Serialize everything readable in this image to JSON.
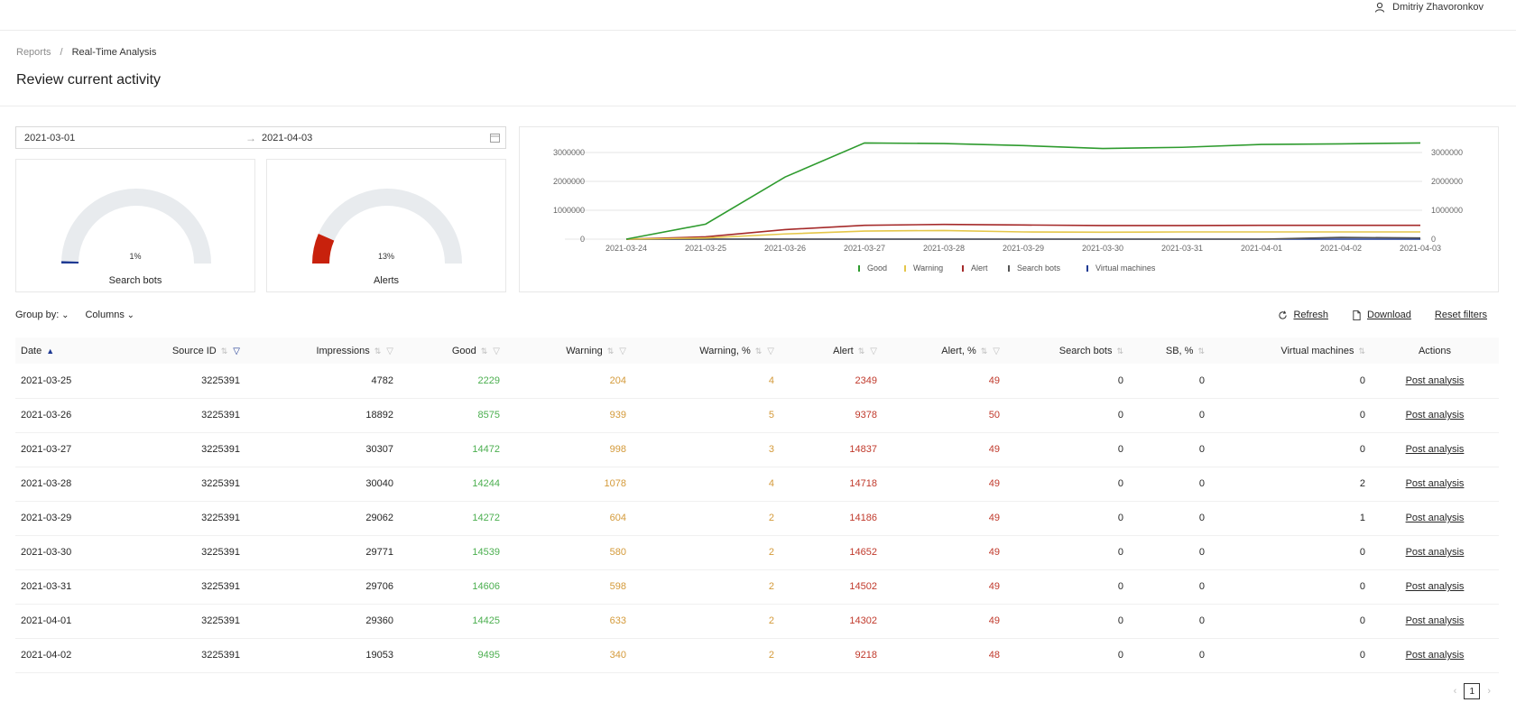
{
  "user": {
    "name": "Dmitriy Zhavoronkov",
    "icon": "user-icon"
  },
  "breadcrumb": {
    "root": "Reports",
    "separator": "/",
    "current": "Real-Time Analysis"
  },
  "page_title": "Review current activity",
  "daterange": {
    "from": "2021-03-01",
    "to": "2021-04-03"
  },
  "gauges": [
    {
      "label": "Search bots",
      "percent_text": "1%",
      "value": 1,
      "color": "#1f3a93"
    },
    {
      "label": "Alerts",
      "percent_text": "13%",
      "value": 13,
      "color": "#c8210c"
    }
  ],
  "chart_data": {
    "type": "line",
    "x": [
      "2021-03-24",
      "2021-03-25",
      "2021-03-26",
      "2021-03-27",
      "2021-03-28",
      "2021-03-29",
      "2021-03-30",
      "2021-03-31",
      "2021-04-01",
      "2021-04-02",
      "2021-04-03"
    ],
    "yticks": [
      "0",
      "1000000",
      "2000000",
      "3000000"
    ],
    "ylim": [
      0,
      3500000
    ],
    "grid": true,
    "legend_position": "bottom",
    "dual_axis": true,
    "series": [
      {
        "name": "Good",
        "color": "#2e9b2e",
        "values": [
          0,
          520000,
          2150000,
          3330000,
          3310000,
          3240000,
          3140000,
          3180000,
          3280000,
          3300000,
          3330000
        ]
      },
      {
        "name": "Warning",
        "color": "#e4c64a",
        "values": [
          0,
          40000,
          180000,
          280000,
          300000,
          250000,
          240000,
          250000,
          250000,
          250000,
          250000
        ]
      },
      {
        "name": "Alert",
        "color": "#a52a2a",
        "values": [
          0,
          80000,
          330000,
          480000,
          510000,
          490000,
          470000,
          470000,
          480000,
          480000,
          480000
        ]
      },
      {
        "name": "Search bots",
        "color": "#555555",
        "values": [
          0,
          0,
          0,
          0,
          0,
          0,
          0,
          0,
          0,
          60000,
          40000
        ]
      },
      {
        "name": "Virtual machines",
        "color": "#1f3a93",
        "values": [
          0,
          0,
          0,
          0,
          0,
          0,
          0,
          0,
          0,
          0,
          0
        ]
      }
    ]
  },
  "toolbar": {
    "group_by": "Group by:",
    "columns": "Columns",
    "refresh": "Refresh",
    "download": "Download",
    "reset": "Reset filters"
  },
  "table": {
    "headers": [
      "Date",
      "Source ID",
      "Impressions",
      "Good",
      "Warning",
      "Warning, %",
      "Alert",
      "Alert, %",
      "Search bots",
      "SB, %",
      "Virtual machines",
      "Actions"
    ],
    "action_label": "Post analysis",
    "rows": [
      [
        "2021-03-25",
        "3225391",
        "4782",
        "2229",
        "204",
        "4",
        "2349",
        "49",
        "0",
        "0",
        "0"
      ],
      [
        "2021-03-26",
        "3225391",
        "18892",
        "8575",
        "939",
        "5",
        "9378",
        "50",
        "0",
        "0",
        "0"
      ],
      [
        "2021-03-27",
        "3225391",
        "30307",
        "14472",
        "998",
        "3",
        "14837",
        "49",
        "0",
        "0",
        "0"
      ],
      [
        "2021-03-28",
        "3225391",
        "30040",
        "14244",
        "1078",
        "4",
        "14718",
        "49",
        "0",
        "0",
        "2"
      ],
      [
        "2021-03-29",
        "3225391",
        "29062",
        "14272",
        "604",
        "2",
        "14186",
        "49",
        "0",
        "0",
        "1"
      ],
      [
        "2021-03-30",
        "3225391",
        "29771",
        "14539",
        "580",
        "2",
        "14652",
        "49",
        "0",
        "0",
        "0"
      ],
      [
        "2021-03-31",
        "3225391",
        "29706",
        "14606",
        "598",
        "2",
        "14502",
        "49",
        "0",
        "0",
        "0"
      ],
      [
        "2021-04-01",
        "3225391",
        "29360",
        "14425",
        "633",
        "2",
        "14302",
        "49",
        "0",
        "0",
        "0"
      ],
      [
        "2021-04-02",
        "3225391",
        "19053",
        "9495",
        "340",
        "2",
        "9218",
        "48",
        "0",
        "0",
        "0"
      ]
    ]
  },
  "pagination": {
    "current": "1",
    "prev": "‹",
    "next": "›"
  }
}
